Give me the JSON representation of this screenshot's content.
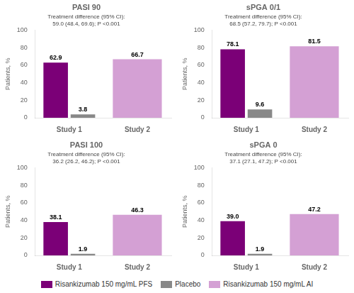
{
  "chart_data": [
    {
      "type": "bar",
      "title": "PASI 90",
      "annotations": [
        "Treatment difference (95% CI):",
        "59.0 (48.4, 69.6); P <0.001"
      ],
      "categories": [
        "Study 1",
        "Study 2"
      ],
      "series": [
        {
          "name": "Risankizumab 150 mg/mL PFS",
          "color": "#7b0077",
          "values": [
            62.9,
            null
          ]
        },
        {
          "name": "Placebo",
          "color": "#888888",
          "values": [
            3.8,
            null
          ]
        },
        {
          "name": "Risankizumab 150 mg/mL AI",
          "color": "#d4a0d4",
          "values": [
            null,
            66.7
          ]
        }
      ],
      "ylabel": "Patients, %",
      "ylim": [
        0,
        100
      ],
      "yticks": [
        0,
        20,
        40,
        60,
        80,
        100
      ],
      "grid": false,
      "data_labels": true,
      "legend": "bottom"
    },
    {
      "type": "bar",
      "title": "sPGA 0/1",
      "annotations": [
        "Treatment difference (95% CI):",
        "68.5 (57.2, 79.7); P <0.001"
      ],
      "categories": [
        "Study 1",
        "Study 2"
      ],
      "series": [
        {
          "name": "Risankizumab 150 mg/mL PFS",
          "color": "#7b0077",
          "values": [
            78.1,
            null
          ]
        },
        {
          "name": "Placebo",
          "color": "#888888",
          "values": [
            9.6,
            null
          ]
        },
        {
          "name": "Risankizumab 150 mg/mL AI",
          "color": "#d4a0d4",
          "values": [
            null,
            81.5
          ]
        }
      ],
      "ylabel": "Patients, %",
      "ylim": [
        0,
        100
      ],
      "yticks": [
        0,
        20,
        40,
        60,
        80,
        100
      ],
      "grid": false,
      "data_labels": true,
      "legend": "bottom"
    },
    {
      "type": "bar",
      "title": "PASI 100",
      "annotations": [
        "Treatment difference (95% CI):",
        "36.2 (26.2, 46.2); P <0.001"
      ],
      "categories": [
        "Study 1",
        "Study 2"
      ],
      "series": [
        {
          "name": "Risankizumab 150 mg/mL PFS",
          "color": "#7b0077",
          "values": [
            38.1,
            null
          ]
        },
        {
          "name": "Placebo",
          "color": "#888888",
          "values": [
            1.9,
            null
          ]
        },
        {
          "name": "Risankizumab 150 mg/mL AI",
          "color": "#d4a0d4",
          "values": [
            null,
            46.3
          ]
        }
      ],
      "ylabel": "Patients, %",
      "ylim": [
        0,
        100
      ],
      "yticks": [
        0,
        20,
        40,
        60,
        80,
        100
      ],
      "grid": false,
      "data_labels": true,
      "legend": "bottom"
    },
    {
      "type": "bar",
      "title": "sPGA 0",
      "annotations": [
        "Treatment difference (95% CI):",
        "37.1 (27.1, 47.2); P <0.001"
      ],
      "categories": [
        "Study 1",
        "Study 2"
      ],
      "series": [
        {
          "name": "Risankizumab 150 mg/mL PFS",
          "color": "#7b0077",
          "values": [
            39.0,
            null
          ],
          "value_labels": [
            "39.0",
            null
          ]
        },
        {
          "name": "Placebo",
          "color": "#888888",
          "values": [
            1.9,
            null
          ]
        },
        {
          "name": "Risankizumab 150 mg/mL AI",
          "color": "#d4a0d4",
          "values": [
            null,
            47.2
          ]
        }
      ],
      "ylabel": "Patients, %",
      "ylim": [
        0,
        100
      ],
      "yticks": [
        0,
        20,
        40,
        60,
        80,
        100
      ],
      "grid": false,
      "data_labels": true,
      "legend": "bottom"
    }
  ]
}
